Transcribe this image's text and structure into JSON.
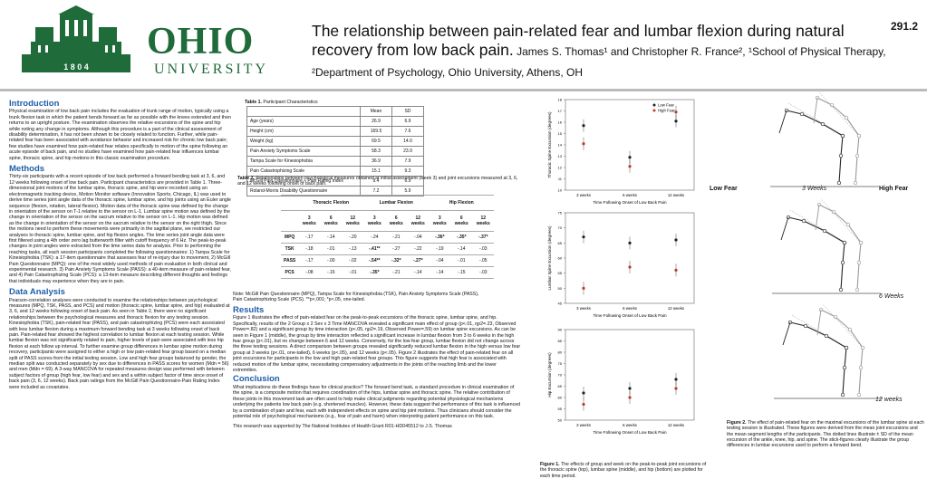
{
  "header": {
    "logo_word": "OHIO",
    "logo_year": "1 8 0 4",
    "logo_univ": "UNIVERSITY",
    "poster_id": "291.2",
    "title": "The relationship between pain-related fear and lumbar flexion during natural recovery from low back pain.",
    "authors": " James S. Thomas¹ and Christopher R. France², ¹School of Physical Therapy, ²Department of Psychology,  Ohio University,  Athens, OH"
  },
  "intro": {
    "heading": "Introduction",
    "text": "Physical examination of low back pain includes the evaluation of trunk range of motion, typically using a trunk flexion task in which the patient bends forward as far as possible with the knees extended and then returns to an upright posture. The examination observes the relative excursions of the spine and hip while noting any change in symptoms. Although this procedure is a part of the clinical assessment of disability determination, it has not been shown to be closely related to function. Further, while pain-related fear has been associated with avoidance behavior and increased risk for chronic low back pain; few studies have examined how pain-related fear relates specifically to motion of the spine following an acute episode of back pain, and no studies have examined how pain-related fear influences lumbar spine, thoracic spine, and hip motions in this classic examination procedure."
  },
  "methods": {
    "heading": "Methods",
    "text": "Thirty-six participants with a recent episode of low back performed a forward bending task at 3, 6, and 12 weeks following onset of low back pain. Participant characteristics are provided in Table 1. Three-dimensional joint motions of the lumbar spine, thoracic spine, and hip were recorded using an electromagnetic tracking device, Motion Monitor software (Innovation Sports, Chicago, IL) was used to derive time series joint angle data of the thoracic spine, lumbar spine, and hip joints using an Euler angle sequence (flexion, rotation, lateral flexion). Motion data of the thoracic spine was defined by the change in orientation of the sensor on T-1 relative to the sensor on L-1. Lumbar spine motion was defined by the change in orientation of the sensor on the sacrum relative to the sensor on L-1. Hip motion was defined as the change in orientation of the sensor on the sacrum relative to the sensor on the right thigh. Since the motions need to perform these movements were primarily in the sagittal plane, we restricted our analyses to thoracic spine, lumbar spine, and hip flexion angles. The time series joint angle data were first filtered using a 4th order zero lag butterworth filter with cutoff frequency of 6 Hz. The peak-to-peak changes in joint angles were extracted from the time series data for analysis. Prior to performing the reaching tasks, all each session participants completed the following questionnaires: 1) Tampa Scale for Kinesiophobia (TSK): a 17-item questionnaire that assesses fear of re-injury due to movement, 2) McGill Pain Questionnaire (MPQ): one of the most widely used methods of pain evaluation in both clinical and experimental research. 3) Pain Anxiety Symptoms Scale (PASS): a 40-item measure of pain-related fear, and 4) Pain Catastrophizing Scale (PCS): a 13-item measure describing different thoughts and feelings that individuals may experience when they are in pain."
  },
  "analysis": {
    "heading": "Data Analysis",
    "text": "Pearson-correlation analyses were conducted to examine the relationships between psychological measures (MPQ, TSK, PASS, and PCS) and motion (thoracic spine, lumbar spine, and hip) evaluated at 3, 6, and 12 weeks following onset of back pain. As seen in Table 2, there were no significant relationships between the psychological measures and thoracic flexion for any testing session. Kinesiophobia (TSK), pain-related fear (PASS), and pain catastrophizing (PCS) were each associated with less lumbar flexion during a maximum forward bending task at 3 weeks following onset of back pain. Pain-related fear showed the highest correlation to lumbar flexion at each testing session. While lumbar flexion was not significantly related to pain, higher levels of pain were associated with less hip flexion at each follow up interval. To further examine group differences in lumbar spine motion during recovery, participants were assigned to either a high or low pain-related fear group based on a median split of PASS scores from the initial testing session. Low and high fear groups balanced by gender, the median split was conducted separately by sex due to differences in PASS scores for women (Mdn = 56) and men (Mdn = 69). A 3-way MANCOVA for repeated measures design was performed with between subject factors of group (high fear, low fear) and sex and a within subject factor of time since onset of back pain (3, 6, 12 weeks). Back pain ratings from the McGill Pain Questionnaire-Pain Rating Index were included as covariates."
  },
  "table1": {
    "caption_bold": "Table 1.",
    "caption": " Participant Characteristics",
    "headers": [
      "",
      "Mean",
      "SD"
    ],
    "rows": [
      [
        "Age (years)",
        "26.9",
        "6.9"
      ],
      [
        "Height (cm)",
        "169.5",
        "7.6"
      ],
      [
        "Weight (kg)",
        "69.5",
        "14.0"
      ],
      [
        "Pain Anxiety Symptoms Scale",
        "58.3",
        "23.9"
      ],
      [
        "Tampa Scale for Kinesiophobia",
        "36.9",
        "7.9"
      ],
      [
        "Pain Catastrophizing Scale",
        "15.1",
        "9.3"
      ],
      [
        "McGill Pain Questionnaire – Pain Rating Index",
        "9.4",
        "6.9"
      ],
      [
        "Roland-Morris Disability Questionnaire",
        "7.2",
        "5.9"
      ]
    ]
  },
  "table2": {
    "caption_bold": "Table 2.",
    "caption": " Relationships between psychological measures obtained at initial assessment (week 3) and joint excursions measured at 3, 6, and 12 weeks following onset of back pain.",
    "groups": [
      "Thoracic Flexion",
      "Lumbar Flexion",
      "Hip Flexion"
    ],
    "weeks": [
      "3 weeks",
      "6 weeks",
      "12 weeks",
      "3 weeks",
      "6 weeks",
      "12 weeks",
      "3 weeks",
      "6 weeks",
      "12 weeks"
    ],
    "rows": [
      {
        "label": "MPQ",
        "values": [
          "-.17",
          "-.14",
          "-.20",
          "-.24",
          "-.21",
          "-.04",
          "-.36*",
          "-.35*",
          "-.37*"
        ]
      },
      {
        "label": "TSK",
        "values": [
          "-.18",
          "-.01",
          "-.13",
          "-.41**",
          "-.27",
          "-.22",
          "-.19",
          "-.14",
          "-.03"
        ]
      },
      {
        "label": "PASS",
        "values": [
          "-.17",
          "-.00",
          "-.02",
          "-.54**",
          "-.32*",
          "-.27*",
          "-.04",
          "-.01",
          "-.05"
        ]
      },
      {
        "label": "PCS",
        "values": [
          "-.08",
          "-.16",
          "-.01",
          "-.35*",
          "-.21",
          "-.14",
          "-.14",
          "-.15",
          "-.03"
        ]
      }
    ],
    "note": "Note: McGill Pain Questionnaire (MPQ), Tampa Scale for Kinesiophobia (TSK), Pain Anxiety Symptoms Scale (PASS), Pain Catastrophizing Scale (PCS). **p<.001; *p<.05, one-tailed."
  },
  "results": {
    "heading": "Results",
    "text": "Figure 1 illustrates the effect of pain-related fear on the peak-to-peak excursions of the thoracic spine, lumbar spine, and hip. Specifically, results of the 2 Group x 2 Sex x 3 Time MANCOVA revealed a significant main effect of group (p<.01, ηp2=.23, Observed Power=.82) and a significant group by time interaction (p<.05, ηp2=.19, Observed Power=.59) on lumbar spine excursions. As can be seen in Figure 1 (middle), the group by time interaction reflected a significant increase in lumbar flexion from 3 to 6 weeks in the high fear group (p<.01), but no change between 6 and 12 weeks. Conversely, for the low fear group, lumbar flexion did not change across the three testing sessions. A direct comparison between groups revealed significantly reduced lumbar flexion in the high versus low fear group at 3 weeks (p<.01, one-tailed), 6 weeks (p<.05), and 12 weeks (p<.05). Figure 2 illustrates the effect of pain-related fear on all joint excursions for participants in the low and high pain-related fear groups. This figure suggests that high fear is associated with reduced motion of the lumbar spine, necessitating compensatory adjustments in the joints of the reaching limb and the lower extremities."
  },
  "conclusion": {
    "heading": "Conclusion",
    "text": "What implications do these findings have for clinical practice? The forward bend task, a standard procedure in clinical examination of the spine, is a composite motion that requires coordination of the hips, lumbar spine and thoracic spine. The relative contribution of these joints in this movement task are often used to help make clinical judgments regarding potential physiological mechanisms underlying the patients low back pain (e.g. shortened muscles). However, these data suggest that performance of this task is influenced by a combination of pain and fear, each with independent effects on spine and hip joint motions. Thus clinicians should consider the potential role of psychological mechanisms (e.g., fear of pain and harm) when interpreting patient performance on this task.",
    "funding": "This research was supported by The National Institutes of Health Grant R01-HD045512 to J.S. Thomas"
  },
  "figure1": {
    "caption_bold": "Figure 1.",
    "caption": " The effects of group and week on the peak-to-peak joint excursions of the thoracic spine (top), lumbar spine (middle), and hip (bottom) are plotted for each time period.",
    "legend": [
      "Low Fear",
      "High Fear"
    ],
    "xlabel": "Time Following Onset of Low Back Pain"
  },
  "chart_data": [
    {
      "type": "scatter",
      "ylabel": "Thoracic Spine Excursion (degrees)",
      "xlabel": "Time Following Onset of Low Back Pain",
      "categories": [
        "3 weeks",
        "6 weeks",
        "12 weeks"
      ],
      "ylim": [
        10,
        18
      ],
      "ticks": [
        "10",
        "11",
        "12",
        "13",
        "14",
        "15",
        "16",
        "17",
        "18"
      ],
      "series": [
        {
          "name": "Low Fear",
          "values": [
            15.7,
            12.9,
            16.1
          ]
        },
        {
          "name": "High Fear",
          "values": [
            14.1,
            12.1,
            16.9
          ]
        }
      ]
    },
    {
      "type": "scatter",
      "ylabel": "Lumbar Spine Excursion (degrees)",
      "xlabel": "Time Following Onset of Low Back Pain",
      "categories": [
        "3 weeks",
        "6 weeks",
        "12 weeks"
      ],
      "ylim": [
        45,
        75
      ],
      "ticks": [
        "45",
        "50",
        "55",
        "60",
        "65",
        "70",
        "75"
      ],
      "series": [
        {
          "name": "Low Fear",
          "values": [
            67,
            65,
            66
          ]
        },
        {
          "name": "High Fear",
          "values": [
            50,
            57,
            56
          ]
        }
      ]
    },
    {
      "type": "scatter",
      "ylabel": "Hip Excursion (degrees)",
      "xlabel": "Time Following Onset of Low Back Pain",
      "categories": [
        "3 weeks",
        "6 weeks",
        "12 weeks"
      ],
      "ylim": [
        50,
        90
      ],
      "ticks": [
        "50",
        "55",
        "60",
        "65",
        "70",
        "75",
        "80",
        "85",
        "90"
      ],
      "series": [
        {
          "name": "Low Fear",
          "values": [
            62,
            64,
            68
          ]
        },
        {
          "name": "High Fear",
          "values": [
            57,
            60,
            64
          ]
        }
      ]
    }
  ],
  "figure2": {
    "caption_bold": "Figure 2.",
    "caption": " The effect of pain-related fear on the maximal excursions of the lumbar spine at each testing session is illustrated. These figures were derived from the mean joint excursions and the mean segment lengths of the participants. The dotted lines illustrate ± SD of the mean excursion of the ankle, knee, hip, and spine. The stick-figures clearly illustrate the group differences in lumbar excursions used to perform a forward bend.",
    "low_label": "Low Fear",
    "high_label": "High Fear",
    "panels": [
      "3 Weeks",
      "6 Weeks",
      "12 weeks"
    ]
  }
}
